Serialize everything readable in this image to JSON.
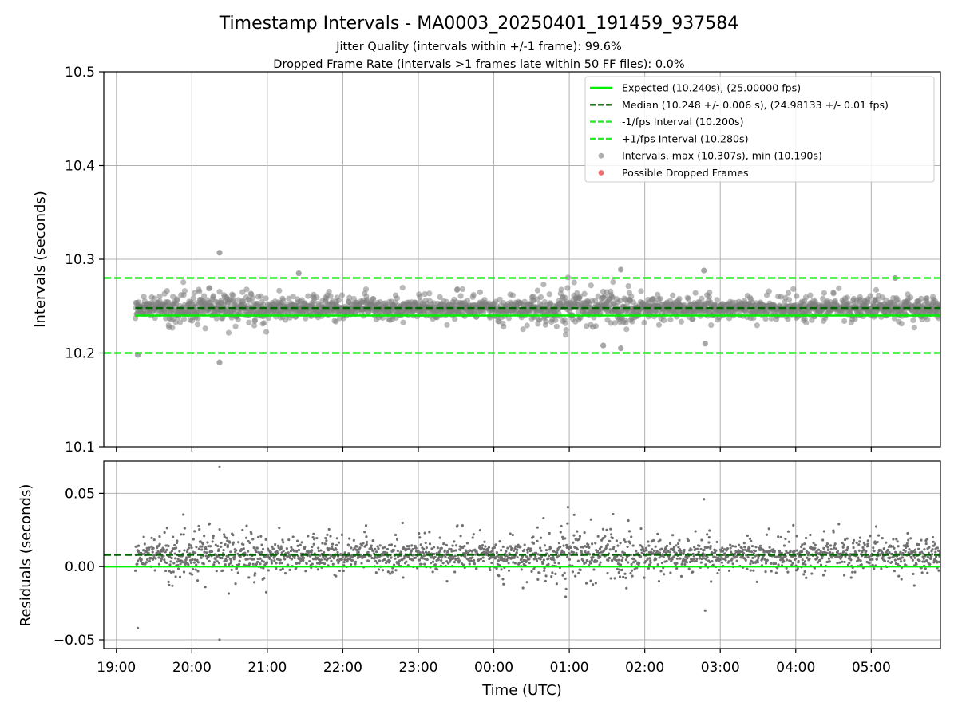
{
  "figure": {
    "title": "Timestamp Intervals - MA0003_20250401_191459_937584",
    "subtitle_1": "Jitter Quality (intervals within +/-1 frame): 99.6%",
    "subtitle_2": "Dropped Frame Rate (intervals >1 frames late within 50 FF files): 0.0%"
  },
  "colors": {
    "expected": "#00ee00",
    "median": "#006400",
    "interval_lines": "#22ee22",
    "points": "#808080",
    "dropped": "#ee3333",
    "grid": "#b0b0b0"
  },
  "chart_data": [
    {
      "type": "scatter",
      "name": "intervals-panel",
      "ylabel": "Intervals (seconds)",
      "xlabel": "",
      "ylim": [
        10.1,
        10.5
      ],
      "yticks": [
        10.1,
        10.2,
        10.3,
        10.4,
        10.5
      ],
      "ytick_labels": [
        "10.1",
        "10.2",
        "10.3",
        "10.4",
        "10.5"
      ],
      "grid": true,
      "legend_position": "top-right",
      "legend": [
        {
          "label": "Expected (10.240s), (25.00000 fps)",
          "style": "solid",
          "color": "#00ee00"
        },
        {
          "label": "Median (10.248 +/- 0.006 s), (24.98133 +/- 0.01 fps)",
          "style": "dashed",
          "color": "#006400"
        },
        {
          "label": "-1/fps Interval (10.200s)",
          "style": "dashed",
          "color": "#22ee22"
        },
        {
          "label": "+1/fps Interval (10.280s)",
          "style": "dashed",
          "color": "#22ee22"
        },
        {
          "label": "Intervals, max (10.307s), min (10.190s)",
          "style": "dot",
          "color": "#a0a0a0"
        },
        {
          "label": "Possible Dropped Frames",
          "style": "dot",
          "color": "#ee5555"
        }
      ],
      "reference_lines": {
        "expected": 10.24,
        "median": 10.248,
        "minus_1_fps": 10.2,
        "plus_1_fps": 10.28
      },
      "series_summary": {
        "median": 10.248,
        "std": 0.006,
        "max": 10.307,
        "min": 10.19,
        "start_time": "19:15",
        "end_time": "05:55",
        "dropped_frames": 0
      },
      "outliers": [
        {
          "time": "19:17",
          "value": 10.198
        },
        {
          "time": "20:22",
          "value": 10.307
        },
        {
          "time": "20:22",
          "value": 10.19
        },
        {
          "time": "21:25",
          "value": 10.285
        },
        {
          "time": "01:27",
          "value": 10.208
        },
        {
          "time": "01:41",
          "value": 10.289
        },
        {
          "time": "01:41",
          "value": 10.205
        },
        {
          "time": "02:47",
          "value": 10.288
        },
        {
          "time": "02:48",
          "value": 10.21
        },
        {
          "time": "05:19",
          "value": 10.28
        }
      ]
    },
    {
      "type": "scatter",
      "name": "residuals-panel",
      "ylabel": "Residuals (seconds)",
      "xlabel": "Time (UTC)",
      "ylim": [
        -0.056,
        0.072
      ],
      "yticks": [
        -0.05,
        0.0,
        0.05
      ],
      "ytick_labels": [
        "−0.05",
        "0.00",
        "0.05"
      ],
      "grid": true,
      "reference_lines": {
        "zero": 0.0,
        "median_offset": 0.008
      },
      "series_summary": {
        "max": 0.068,
        "min": -0.05
      },
      "outliers": [
        {
          "time": "19:17",
          "value": -0.042
        },
        {
          "time": "20:22",
          "value": 0.068
        },
        {
          "time": "20:22",
          "value": -0.05
        },
        {
          "time": "02:48",
          "value": -0.03
        },
        {
          "time": "02:47",
          "value": 0.046
        }
      ]
    }
  ],
  "xaxis": {
    "label": "Time (UTC)",
    "range": [
      "18:50",
      "05:55"
    ],
    "ticks": [
      "19:00",
      "20:00",
      "21:00",
      "22:00",
      "23:00",
      "00:00",
      "01:00",
      "02:00",
      "03:00",
      "04:00",
      "05:00"
    ]
  }
}
